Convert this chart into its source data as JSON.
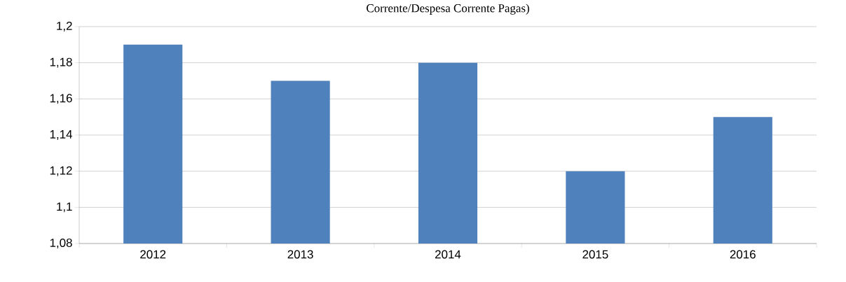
{
  "chart_data": {
    "type": "bar",
    "title": "Corrente/Despesa Corrente Pagas)",
    "categories": [
      "2012",
      "2013",
      "2014",
      "2015",
      "2016"
    ],
    "values": [
      1.19,
      1.17,
      1.18,
      1.12,
      1.15
    ],
    "color": "#4f81bd",
    "ylim": [
      1.08,
      1.2
    ],
    "yticks": [
      {
        "value": 1.08,
        "label": "1,08"
      },
      {
        "value": 1.1,
        "label": "1,1"
      },
      {
        "value": 1.12,
        "label": "1,12"
      },
      {
        "value": 1.14,
        "label": "1,14"
      },
      {
        "value": 1.16,
        "label": "1,16"
      },
      {
        "value": 1.18,
        "label": "1,18"
      },
      {
        "value": 1.2,
        "label": "1,2"
      }
    ],
    "grid": "y"
  }
}
